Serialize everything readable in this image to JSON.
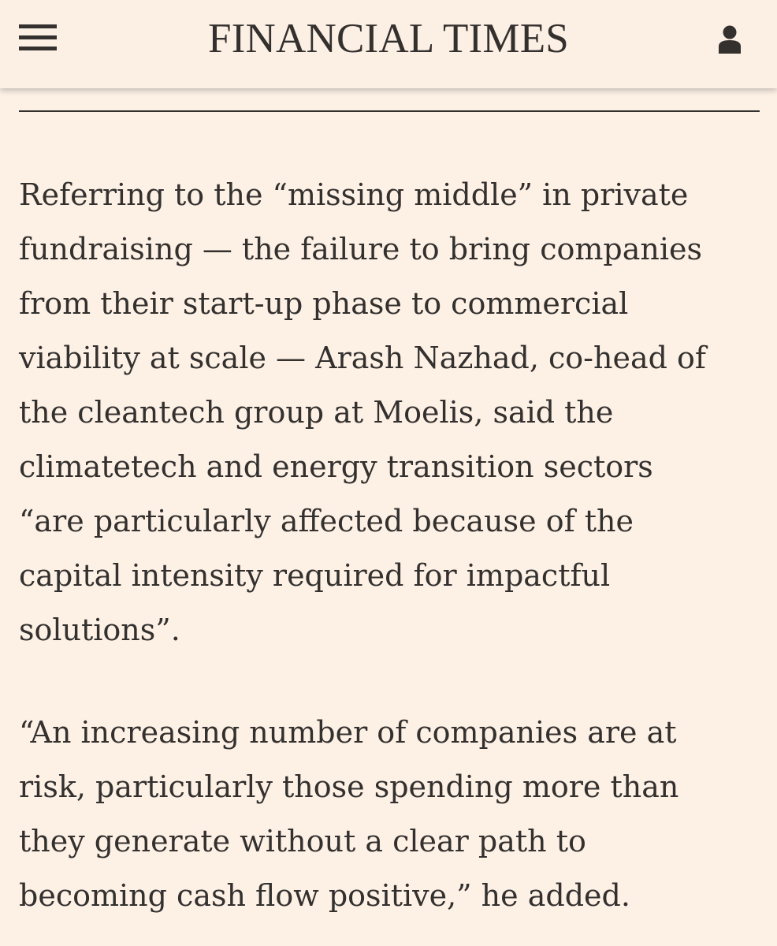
{
  "header": {
    "masthead": "FINANCIAL TIMES",
    "menu_icon": "hamburger-menu-icon",
    "account_icon": "user-icon"
  },
  "article": {
    "paragraphs": [
      "Referring to the “missing middle” in private\nfundraising — the failure to bring companies\nfrom their start-up phase to commercial\nviability at scale — Arash Nazhad, co-head of\nthe cleantech group at Moelis, said the\nclimatetech and energy transition sectors\n“are particularly affected because of the\ncapital intensity required for impactful\nsolutions”.",
      "“An increasing number of companies are at\nrisk, particularly those spending more than\nthey generate without a clear path to\nbecoming cash flow positive,” he added."
    ]
  },
  "colors": {
    "page_background": "#fdf1e6",
    "header_background": "#fcefe4",
    "text": "#33302e"
  }
}
